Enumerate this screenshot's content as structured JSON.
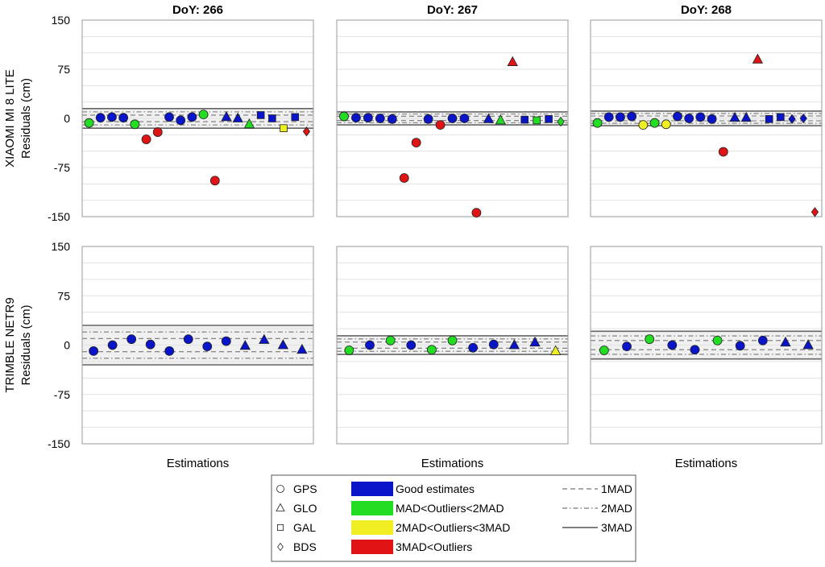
{
  "chart_data": {
    "type": "scatter",
    "ylim": [
      -150,
      150
    ],
    "yticks": [
      150,
      75,
      0,
      -75,
      -150
    ],
    "grid_step": 25,
    "xlabel": "Estimations",
    "columns": [
      "DoY: 266",
      "DoY: 267",
      "DoY: 268"
    ],
    "rows": [
      {
        "label_line1": "XIAOMI MI 8 LITE",
        "label_line2": "Residuals (cm)"
      },
      {
        "label_line1": "TRIMBLE NETR9",
        "label_line2": "Residuals (cm)"
      }
    ],
    "colors": {
      "good": "#0a14c8",
      "mad1_2": "#22dd22",
      "mad2_3": "#eeee22",
      "mad3": "#e01414"
    },
    "panels": [
      {
        "row": 0,
        "col": 0,
        "mad": 5,
        "points": [
          [
            "GPS",
            "mad1_2",
            -7
          ],
          [
            "GPS",
            "good",
            1
          ],
          [
            "GPS",
            "good",
            2
          ],
          [
            "GPS",
            "good",
            1
          ],
          [
            "GPS",
            "mad1_2",
            -9
          ],
          [
            "GPS",
            "mad3",
            -32
          ],
          [
            "GPS",
            "mad3",
            -21
          ],
          [
            "GPS",
            "good",
            2
          ],
          [
            "GPS",
            "good",
            -3
          ],
          [
            "GPS",
            "good",
            2
          ],
          [
            "GPS",
            "mad1_2",
            6
          ],
          [
            "GPS",
            "mad3",
            -95
          ],
          [
            "GLO",
            "good",
            2
          ],
          [
            "GLO",
            "good",
            0
          ],
          [
            "GLO",
            "mad1_2",
            -9
          ],
          [
            "GAL",
            "good",
            5
          ],
          [
            "GAL",
            "good",
            0
          ],
          [
            "GAL",
            "mad2_3",
            -15
          ],
          [
            "GAL",
            "good",
            2
          ],
          [
            "BDS",
            "mad3",
            -20
          ]
        ]
      },
      {
        "row": 0,
        "col": 1,
        "mad": 3.3,
        "points": [
          [
            "GPS",
            "mad1_2",
            3
          ],
          [
            "GPS",
            "good",
            1
          ],
          [
            "GPS",
            "good",
            1
          ],
          [
            "GPS",
            "good",
            0
          ],
          [
            "GPS",
            "good",
            -1
          ],
          [
            "GPS",
            "mad3",
            -91
          ],
          [
            "GPS",
            "mad3",
            -37
          ],
          [
            "GPS",
            "good",
            -1
          ],
          [
            "GPS",
            "mad3",
            -10
          ],
          [
            "GPS",
            "good",
            0
          ],
          [
            "GPS",
            "good",
            0
          ],
          [
            "GPS",
            "mad3",
            -144
          ],
          [
            "GLO",
            "good",
            -1
          ],
          [
            "GLO",
            "mad1_2",
            -3
          ],
          [
            "GLO",
            "mad3",
            86
          ],
          [
            "GAL",
            "good",
            -2
          ],
          [
            "GAL",
            "mad1_2",
            -3
          ],
          [
            "GAL",
            "good",
            -1
          ],
          [
            "BDS",
            "mad1_2",
            -5
          ]
        ]
      },
      {
        "row": 0,
        "col": 2,
        "mad": 3.7,
        "points": [
          [
            "GPS",
            "mad1_2",
            -7
          ],
          [
            "GPS",
            "good",
            2
          ],
          [
            "GPS",
            "good",
            2
          ],
          [
            "GPS",
            "good",
            3
          ],
          [
            "GPS",
            "mad2_3",
            -10
          ],
          [
            "GPS",
            "mad1_2",
            -7
          ],
          [
            "GPS",
            "mad2_3",
            -9
          ],
          [
            "GPS",
            "good",
            3
          ],
          [
            "GPS",
            "good",
            0
          ],
          [
            "GPS",
            "good",
            2
          ],
          [
            "GPS",
            "good",
            -1
          ],
          [
            "GPS",
            "mad3",
            -51
          ],
          [
            "GLO",
            "good",
            1
          ],
          [
            "GLO",
            "good",
            1
          ],
          [
            "GLO",
            "mad3",
            90
          ],
          [
            "GAL",
            "good",
            -1
          ],
          [
            "GAL",
            "good",
            2
          ],
          [
            "BDS",
            "good",
            -1
          ],
          [
            "BDS",
            "good",
            0
          ],
          [
            "BDS",
            "mad3",
            -143
          ]
        ]
      },
      {
        "row": 1,
        "col": 0,
        "mad": 10,
        "points": [
          [
            "GPS",
            "good",
            -9
          ],
          [
            "GPS",
            "good",
            0
          ],
          [
            "GPS",
            "good",
            9
          ],
          [
            "GPS",
            "good",
            1
          ],
          [
            "GPS",
            "good",
            -9
          ],
          [
            "GPS",
            "good",
            9
          ],
          [
            "GPS",
            "good",
            -2
          ],
          [
            "GPS",
            "good",
            6
          ],
          [
            "GLO",
            "good",
            -1
          ],
          [
            "GLO",
            "good",
            8
          ],
          [
            "GLO",
            "good",
            0
          ],
          [
            "GLO",
            "good",
            -7
          ]
        ]
      },
      {
        "row": 1,
        "col": 1,
        "mad": 4.7,
        "points": [
          [
            "GPS",
            "mad1_2",
            -8
          ],
          [
            "GPS",
            "good",
            0
          ],
          [
            "GPS",
            "mad1_2",
            7
          ],
          [
            "GPS",
            "good",
            0
          ],
          [
            "GPS",
            "mad1_2",
            -7
          ],
          [
            "GPS",
            "mad1_2",
            7
          ],
          [
            "GPS",
            "good",
            -4
          ],
          [
            "GPS",
            "good",
            1
          ],
          [
            "GLO",
            "good",
            0
          ],
          [
            "GLO",
            "good",
            4
          ],
          [
            "GLO",
            "mad2_3",
            -9
          ]
        ]
      },
      {
        "row": 1,
        "col": 2,
        "mad": 7,
        "points": [
          [
            "GPS",
            "mad1_2",
            -8
          ],
          [
            "GPS",
            "good",
            -2
          ],
          [
            "GPS",
            "mad1_2",
            9
          ],
          [
            "GPS",
            "good",
            0
          ],
          [
            "GPS",
            "good",
            -7
          ],
          [
            "GPS",
            "mad1_2",
            7
          ],
          [
            "GPS",
            "good",
            -1
          ],
          [
            "GPS",
            "good",
            7
          ],
          [
            "GLO",
            "good",
            4
          ],
          [
            "GLO",
            "good",
            0
          ]
        ]
      }
    ],
    "legend": {
      "systems": [
        {
          "key": "GPS",
          "label": "GPS"
        },
        {
          "key": "GLO",
          "label": "GLO"
        },
        {
          "key": "GAL",
          "label": "GAL"
        },
        {
          "key": "BDS",
          "label": "BDS"
        }
      ],
      "classes": [
        {
          "key": "good",
          "label": "Good estimates"
        },
        {
          "key": "mad1_2",
          "label": "MAD<Outliers<2MAD"
        },
        {
          "key": "mad2_3",
          "label": "2MAD<Outliers<3MAD"
        },
        {
          "key": "mad3",
          "label": "3MAD<Outliers"
        }
      ],
      "lines": [
        {
          "key": "1",
          "label": "1MAD"
        },
        {
          "key": "2",
          "label": "2MAD"
        },
        {
          "key": "3",
          "label": "3MAD"
        }
      ]
    }
  }
}
